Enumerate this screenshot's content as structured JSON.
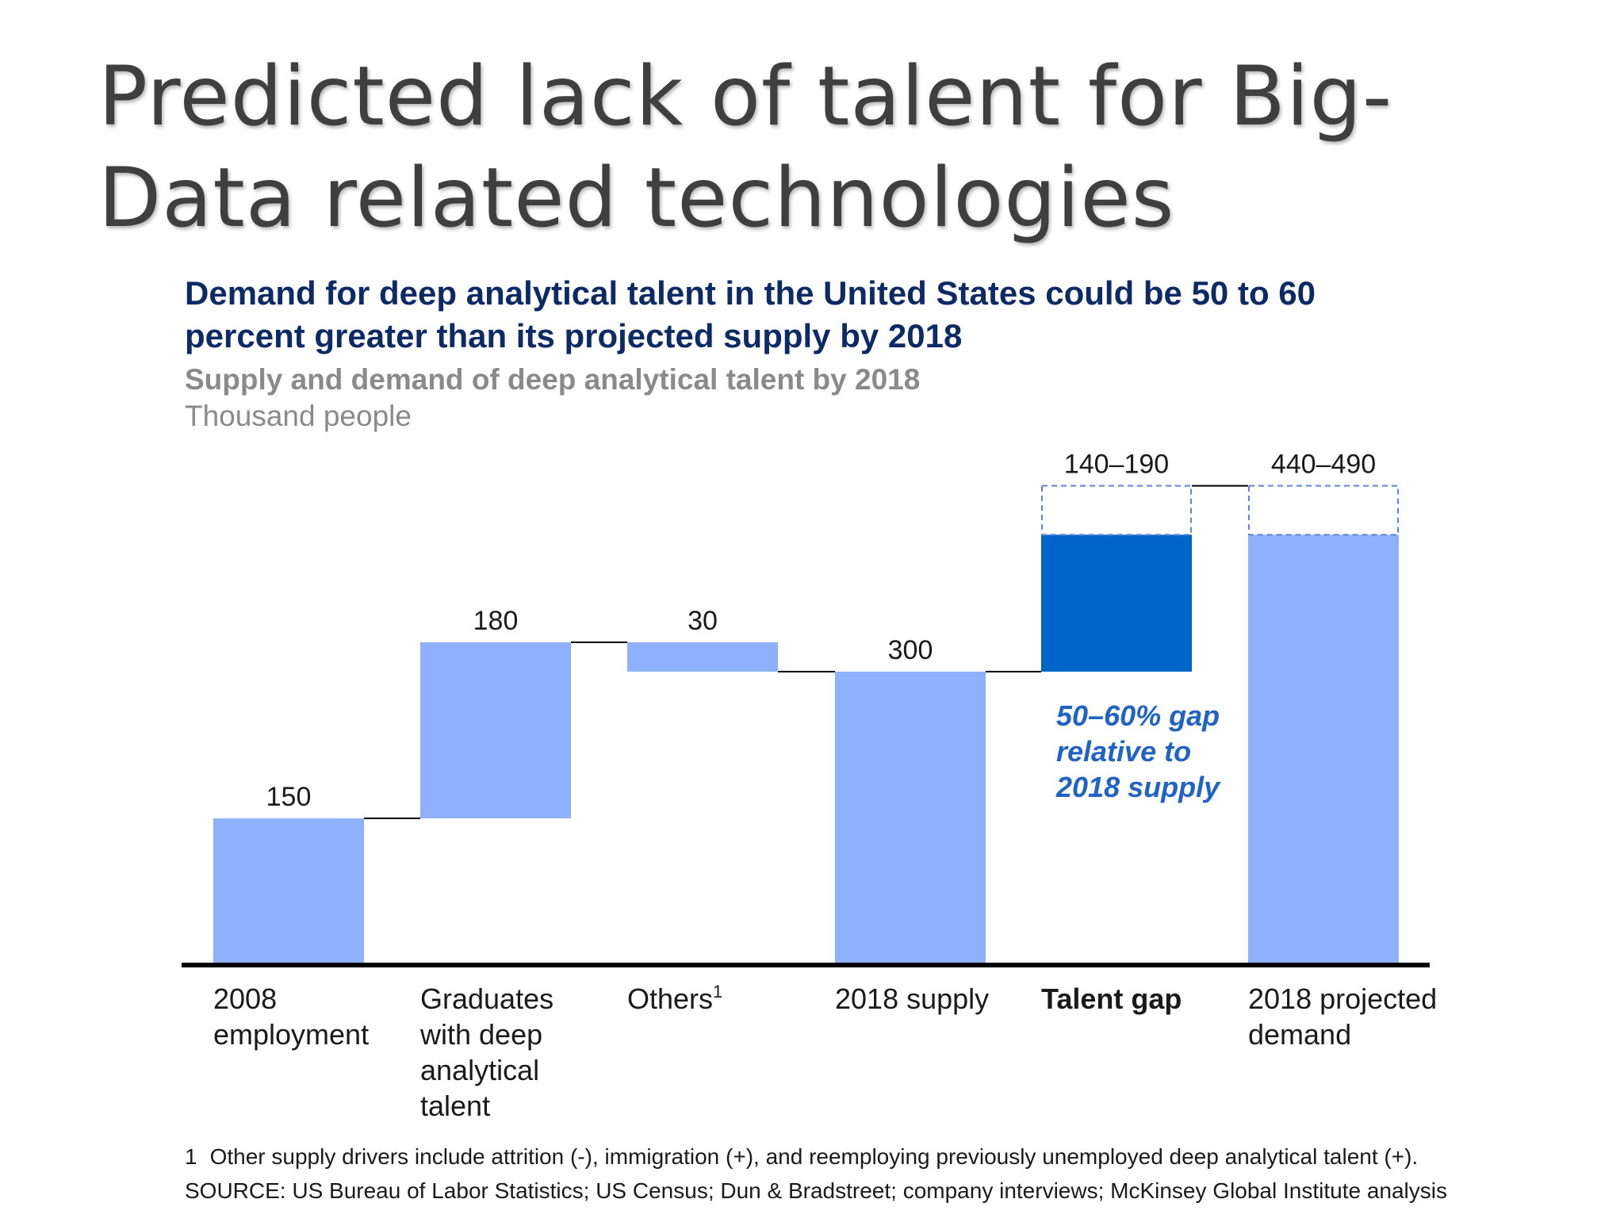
{
  "slide": {
    "title": "Predicted lack of talent for Big-Data related technologies"
  },
  "chart_data": {
    "type": "waterfall",
    "title": "Demand for deep analytical talent in the United States could be 50 to 60 percent greater than its projected supply by 2018",
    "subtitle": "Supply and demand of deep analytical talent by 2018",
    "units": "Thousand people",
    "ylim": [
      0,
      540
    ],
    "categories": [
      "2008 employment",
      "Graduates with deep analytical talent",
      "Others",
      "2018 supply",
      "Talent gap",
      "2018 projected demand"
    ],
    "footnote_marker": "1",
    "bars": [
      {
        "category": "2008 employment",
        "start": 0,
        "end": 150,
        "label": "150",
        "kind": "total"
      },
      {
        "category": "Graduates with deep analytical talent",
        "start": 150,
        "end": 330,
        "label": "180",
        "kind": "increment"
      },
      {
        "category": "Others",
        "start": 300,
        "end": 330,
        "label": "30",
        "kind": "decrement"
      },
      {
        "category": "2018 supply",
        "start": 0,
        "end": 300,
        "label": "300",
        "kind": "total"
      },
      {
        "category": "Talent gap",
        "start": 300,
        "end": 440,
        "end_max": 490,
        "label": "140–190",
        "kind": "gap"
      },
      {
        "category": "2018 projected demand",
        "start": 0,
        "end": 440,
        "end_max": 490,
        "label": "440–490",
        "kind": "total-range"
      }
    ],
    "annotation": "50–60% gap relative to 2018 supply",
    "colors": {
      "bar": "#8fb0fb",
      "gap": "#0066cc",
      "annotation": "#1f63c6",
      "axis": "#000000",
      "connector": "#000000",
      "dashed_outline": "#5b88d6"
    }
  },
  "labels": {
    "cat_lines": [
      [
        "2008",
        "employment"
      ],
      [
        "Graduates",
        "with deep",
        "analytical",
        "talent"
      ],
      [
        "Others"
      ],
      [
        "2018 supply"
      ],
      [
        "Talent gap"
      ],
      [
        "2018 projected",
        "demand"
      ]
    ],
    "annotation_lines": [
      "50–60% gap",
      "relative to",
      "2018 supply"
    ]
  },
  "notes": {
    "footnote_number": "1",
    "footnote": "Other supply drivers include attrition (-), immigration (+), and reemploying previously unemployed deep analytical talent (+).",
    "source": "SOURCE: US Bureau of Labor Statistics; US Census; Dun & Bradstreet; company interviews; McKinsey Global Institute analysis"
  }
}
